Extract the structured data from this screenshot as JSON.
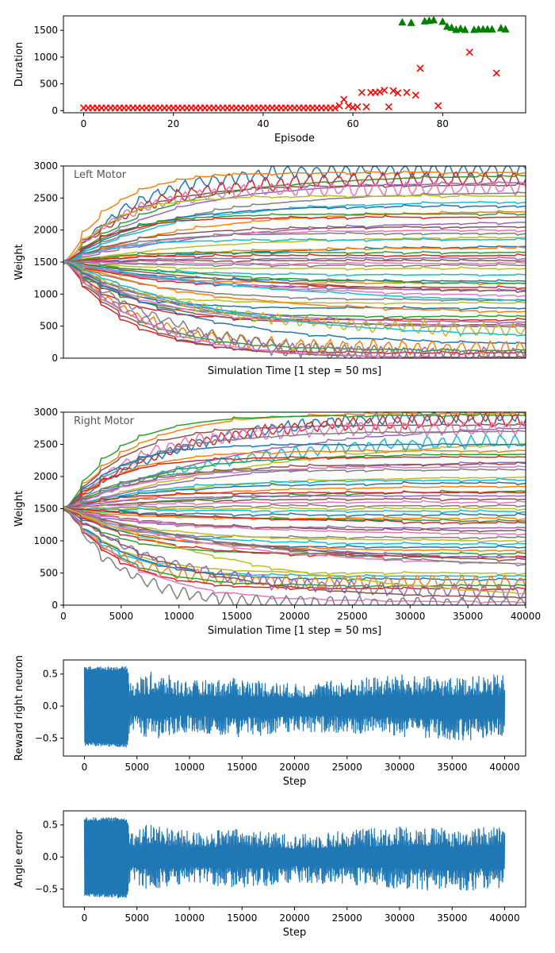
{
  "chart_data": [
    {
      "id": "episodes",
      "type": "scatter",
      "xlabel": "Episode",
      "ylabel": "Duration",
      "xlim": [
        -4.5,
        98.5
      ],
      "ylim": [
        -40,
        1770
      ],
      "xticks": [
        0,
        20,
        40,
        60,
        80
      ],
      "yticks": [
        0,
        500,
        1000,
        1500
      ],
      "series": [
        {
          "marker": "x",
          "color": "#ff0000",
          "points": [
            [
              0,
              50
            ],
            [
              1,
              50
            ],
            [
              2,
              50
            ],
            [
              3,
              50
            ],
            [
              4,
              50
            ],
            [
              5,
              50
            ],
            [
              6,
              50
            ],
            [
              7,
              50
            ],
            [
              8,
              50
            ],
            [
              9,
              50
            ],
            [
              10,
              50
            ],
            [
              11,
              50
            ],
            [
              12,
              50
            ],
            [
              13,
              50
            ],
            [
              14,
              50
            ],
            [
              15,
              50
            ],
            [
              16,
              50
            ],
            [
              17,
              50
            ],
            [
              18,
              50
            ],
            [
              19,
              50
            ],
            [
              20,
              50
            ],
            [
              21,
              50
            ],
            [
              22,
              50
            ],
            [
              23,
              50
            ],
            [
              24,
              50
            ],
            [
              25,
              50
            ],
            [
              26,
              50
            ],
            [
              27,
              50
            ],
            [
              28,
              50
            ],
            [
              29,
              50
            ],
            [
              30,
              50
            ],
            [
              31,
              50
            ],
            [
              32,
              50
            ],
            [
              33,
              50
            ],
            [
              34,
              50
            ],
            [
              35,
              50
            ],
            [
              36,
              50
            ],
            [
              37,
              50
            ],
            [
              38,
              50
            ],
            [
              39,
              50
            ],
            [
              40,
              50
            ],
            [
              41,
              50
            ],
            [
              42,
              50
            ],
            [
              43,
              50
            ],
            [
              44,
              50
            ],
            [
              45,
              50
            ],
            [
              46,
              50
            ],
            [
              47,
              50
            ],
            [
              48,
              50
            ],
            [
              49,
              50
            ],
            [
              50,
              50
            ],
            [
              51,
              50
            ],
            [
              52,
              50
            ],
            [
              53,
              50
            ],
            [
              54,
              50
            ],
            [
              55,
              50
            ],
            [
              56,
              50
            ],
            [
              57,
              90
            ],
            [
              58,
              210
            ],
            [
              59,
              90
            ],
            [
              60,
              60
            ],
            [
              61,
              70
            ],
            [
              62,
              340
            ],
            [
              63,
              70
            ],
            [
              64,
              340
            ],
            [
              65,
              340
            ],
            [
              66,
              350
            ],
            [
              67,
              380
            ],
            [
              68,
              70
            ],
            [
              69,
              370
            ],
            [
              70,
              330
            ],
            [
              72,
              340
            ],
            [
              74,
              290
            ],
            [
              75,
              790
            ],
            [
              79,
              90
            ],
            [
              86,
              1090
            ],
            [
              92,
              700
            ]
          ]
        },
        {
          "marker": "^",
          "color": "#008000",
          "points": [
            [
              71,
              1650
            ],
            [
              73,
              1640
            ],
            [
              76,
              1670
            ],
            [
              77,
              1680
            ],
            [
              78,
              1690
            ],
            [
              80,
              1660
            ],
            [
              81,
              1570
            ],
            [
              82,
              1550
            ],
            [
              83,
              1510
            ],
            [
              84,
              1530
            ],
            [
              85,
              1510
            ],
            [
              87,
              1510
            ],
            [
              88,
              1520
            ],
            [
              89,
              1520
            ],
            [
              90,
              1520
            ],
            [
              91,
              1520
            ],
            [
              93,
              1540
            ],
            [
              94,
              1520
            ]
          ]
        }
      ]
    },
    {
      "id": "left-motor",
      "type": "line",
      "label": "Left Motor",
      "xlabel": "Simulation Time [1 step = 50 ms]",
      "ylabel": "Weight",
      "xlim": [
        0,
        40000
      ],
      "ylim": [
        0,
        3000
      ],
      "yticks": [
        0,
        500,
        1000,
        1500,
        2000,
        2500,
        3000
      ],
      "show_xtick_labels": false,
      "start_value": 1500,
      "final_values": [
        2950,
        2900,
        2850,
        2800,
        2750,
        2700,
        2650,
        2600,
        2530,
        2450,
        2380,
        2300,
        2250,
        2200,
        2150,
        2050,
        2000,
        1950,
        1900,
        1850,
        1780,
        1720,
        1650,
        1600,
        1560,
        1520,
        1480,
        1450,
        1400,
        1300,
        1200,
        1170,
        1130,
        1100,
        1050,
        1000,
        950,
        900,
        860,
        820,
        780,
        700,
        650,
        600,
        550,
        520,
        500,
        470,
        400,
        300,
        200,
        150,
        120,
        80,
        40,
        10,
        0,
        0
      ]
    },
    {
      "id": "right-motor",
      "type": "line",
      "label": "Right Motor",
      "xlabel": "Simulation Time [1 step = 50 ms]",
      "ylabel": "Weight",
      "xlim": [
        0,
        40000
      ],
      "ylim": [
        0,
        3000
      ],
      "xticks": [
        0,
        5000,
        10000,
        15000,
        20000,
        25000,
        30000,
        35000,
        40000
      ],
      "yticks": [
        0,
        500,
        1000,
        1500,
        2000,
        2500,
        3000
      ],
      "show_xtick_labels": true,
      "start_value": 1500,
      "final_values": [
        3000,
        2980,
        2950,
        2900,
        2850,
        2800,
        2750,
        2700,
        2650,
        2600,
        2500,
        2400,
        2350,
        2300,
        2250,
        2200,
        2150,
        2100,
        2000,
        1950,
        1900,
        1850,
        1800,
        1750,
        1700,
        1650,
        1600,
        1550,
        1500,
        1450,
        1400,
        1350,
        1300,
        1250,
        1200,
        1150,
        1100,
        1050,
        1000,
        950,
        900,
        850,
        800,
        750,
        700,
        650,
        600,
        550,
        500,
        450,
        400,
        350,
        300,
        250,
        200,
        100,
        50,
        20,
        0
      ]
    },
    {
      "id": "reward-right",
      "type": "line",
      "xlabel": "Step",
      "ylabel": "Reward right neuron",
      "xlim": [
        -2000,
        42000
      ],
      "ylim": [
        -0.78,
        0.72
      ],
      "xticks": [
        0,
        5000,
        10000,
        15000,
        20000,
        25000,
        30000,
        35000,
        40000
      ],
      "yticks": [
        -0.5,
        0.0,
        0.5
      ],
      "ytick_labels": [
        "−0.5",
        "0.0",
        "0.5"
      ],
      "color": "#1f77b4",
      "x_range": [
        0,
        40000
      ],
      "envelope": [
        {
          "x": 0,
          "hi": 0.62,
          "lo": -0.62
        },
        {
          "x": 4000,
          "hi": 0.62,
          "lo": -0.65
        },
        {
          "x": 4500,
          "hi": 0.4,
          "lo": -0.4
        },
        {
          "x": 6500,
          "hi": 0.55,
          "lo": -0.55
        },
        {
          "x": 10000,
          "hi": 0.4,
          "lo": -0.4
        },
        {
          "x": 15000,
          "hi": 0.45,
          "lo": -0.5
        },
        {
          "x": 20000,
          "hi": 0.35,
          "lo": -0.4
        },
        {
          "x": 26500,
          "hi": 0.45,
          "lo": -0.45
        },
        {
          "x": 30000,
          "hi": 0.5,
          "lo": -0.5
        },
        {
          "x": 35000,
          "hi": 0.45,
          "lo": -0.55
        },
        {
          "x": 40000,
          "hi": 0.5,
          "lo": -0.5
        }
      ]
    },
    {
      "id": "angle-error",
      "type": "line",
      "xlabel": "Step",
      "ylabel": "Angle error",
      "xlim": [
        -2000,
        42000
      ],
      "ylim": [
        -0.78,
        0.72
      ],
      "xticks": [
        0,
        5000,
        10000,
        15000,
        20000,
        25000,
        30000,
        35000,
        40000
      ],
      "yticks": [
        -0.5,
        0.0,
        0.5
      ],
      "ytick_labels": [
        "−0.5",
        "0.0",
        "0.5"
      ],
      "color": "#1f77b4",
      "x_range": [
        0,
        40000
      ],
      "envelope": [
        {
          "x": 0,
          "hi": 0.62,
          "lo": -0.62
        },
        {
          "x": 4000,
          "hi": 0.62,
          "lo": -0.65
        },
        {
          "x": 4500,
          "hi": 0.4,
          "lo": -0.4
        },
        {
          "x": 6500,
          "hi": 0.55,
          "lo": -0.55
        },
        {
          "x": 10000,
          "hi": 0.4,
          "lo": -0.4
        },
        {
          "x": 15000,
          "hi": 0.45,
          "lo": -0.5
        },
        {
          "x": 20000,
          "hi": 0.35,
          "lo": -0.4
        },
        {
          "x": 26500,
          "hi": 0.45,
          "lo": -0.45
        },
        {
          "x": 30000,
          "hi": 0.5,
          "lo": -0.5
        },
        {
          "x": 35000,
          "hi": 0.45,
          "lo": -0.55
        },
        {
          "x": 40000,
          "hi": 0.5,
          "lo": -0.5
        }
      ]
    }
  ],
  "palette": [
    "#1f77b4",
    "#ff7f0e",
    "#2ca02c",
    "#d62728",
    "#9467bd",
    "#8c564b",
    "#e377c2",
    "#7f7f7f",
    "#bcbd22",
    "#17becf"
  ]
}
